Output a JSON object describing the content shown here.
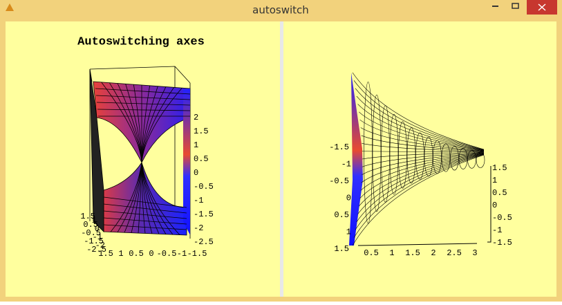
{
  "window": {
    "title": "autoswitch"
  },
  "left_plot": {
    "title": "Autoswitching axes",
    "z_ticks": [
      "2",
      "1.5",
      "1",
      "0.5",
      "0",
      "-0.5",
      "-1",
      "-1.5",
      "-2",
      "-2.5"
    ],
    "x_ticks": [
      "1.5",
      "1",
      "0.5",
      "0",
      "-0.5",
      "-1",
      "-1.5"
    ],
    "y_ticks": [
      "1.5",
      "1",
      "0.5",
      "0",
      "-0.5",
      "-1",
      "-1.5",
      "-2",
      "-2.5"
    ]
  },
  "right_plot": {
    "left_ticks": [
      "-1.5",
      "-1",
      "-0.5",
      "0",
      "0.5",
      "1",
      "1.5"
    ],
    "bottom_ticks": [
      "0.5",
      "1",
      "1.5",
      "2",
      "2.5",
      "3"
    ],
    "right_ticks": [
      "1.5",
      "1",
      "0.5",
      "0",
      "-0.5",
      "-1",
      "-1.5"
    ]
  }
}
